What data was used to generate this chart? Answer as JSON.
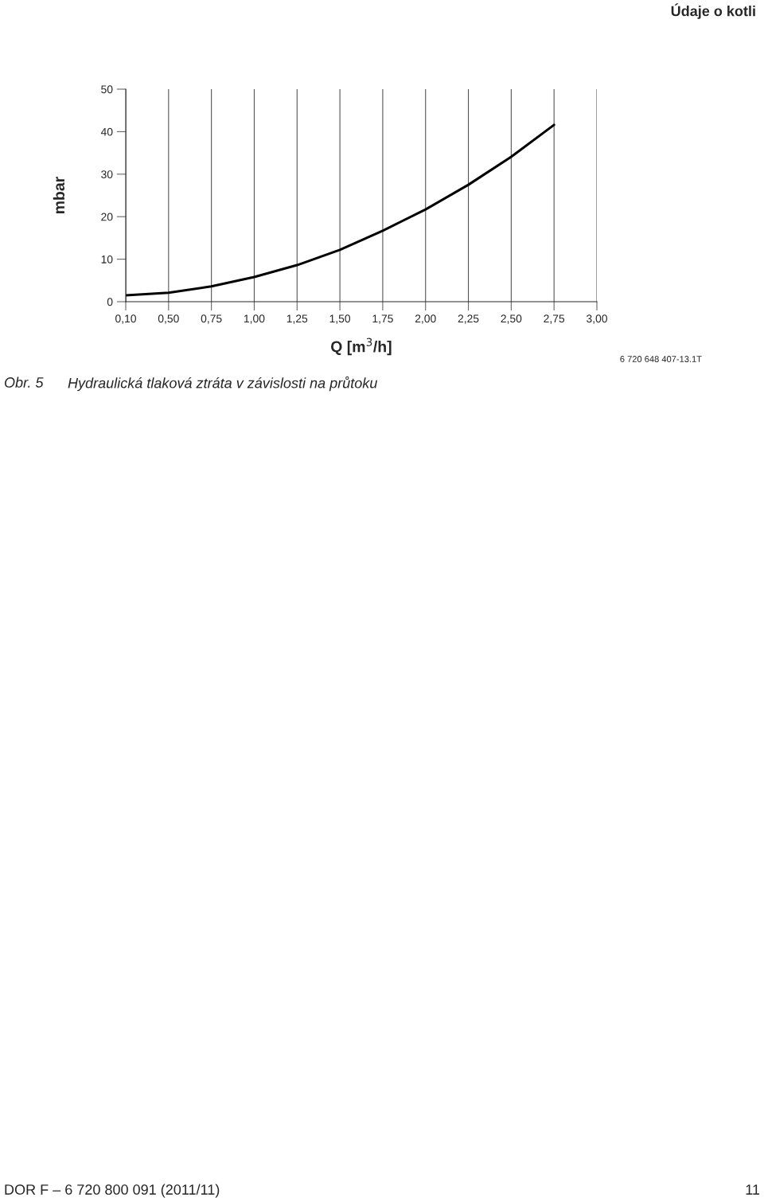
{
  "chart_data": {
    "type": "line",
    "xlabel": "Q [m$^{3}$/h]",
    "ylabel": "mbar",
    "annotations": [
      "Údaje o kotli",
      "6 720 648 407-13.1T",
      "Obr. 5",
      "Hydraulická tlaková ztráta v závislosti na průtoku",
      "DOR F – 6 720 800 091 (2011/11)",
      "11"
    ],
    "categories": [
      "0,10",
      "0,50",
      "0,75",
      "1,00",
      "1,25",
      "1,50",
      "1,75",
      "2,00",
      "2,25",
      "2,50",
      "2,75",
      "3,00"
    ],
    "series": [
      {
        "color": "#000000",
        "values": [
          1.5,
          2.1,
          3.6,
          5.8,
          8.6,
          12.2,
          16.7,
          21.7,
          27.5,
          34.1,
          41.6,
          null
        ]
      }
    ],
    "ylim": [
      0,
      50
    ],
    "yticks": [
      0,
      10,
      20,
      30,
      40,
      50
    ],
    "grid": "x",
    "marker": "none",
    "line_style": "solid"
  }
}
